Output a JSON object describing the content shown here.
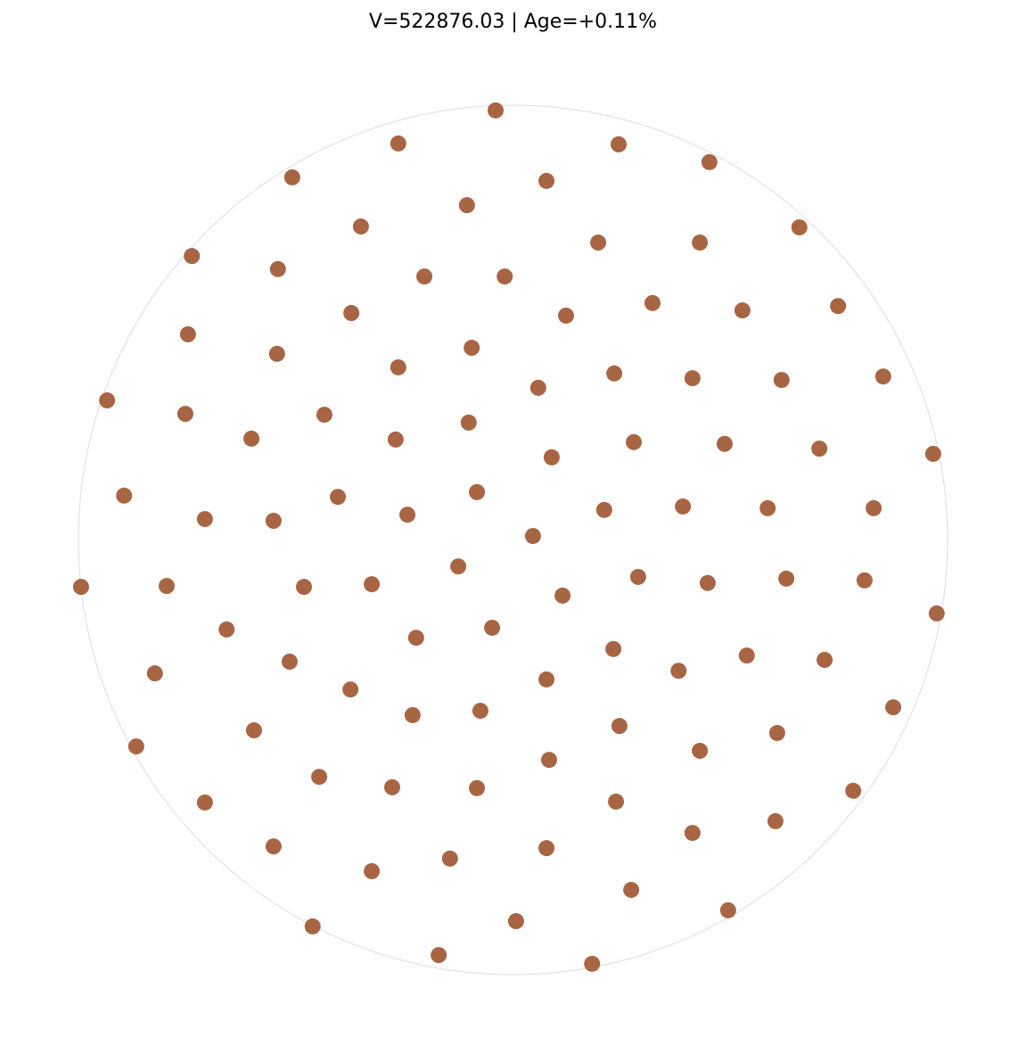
{
  "chart_data": {
    "type": "scatter",
    "title": "V=522876.03 | Age=+0.11%",
    "xlabel": "",
    "ylabel": "",
    "xlim": [
      -1,
      1
    ],
    "ylim": [
      -1,
      1
    ],
    "grid": false,
    "boundary": "circle",
    "colors": {
      "point": "#a86544",
      "boundary": "#dddddd"
    },
    "points": [
      [
        -0.04,
        0.988
      ],
      [
        -0.264,
        0.912
      ],
      [
        0.243,
        0.91
      ],
      [
        0.452,
        0.869
      ],
      [
        -0.508,
        0.834
      ],
      [
        0.077,
        0.826
      ],
      [
        -0.106,
        0.77
      ],
      [
        -0.35,
        0.721
      ],
      [
        0.659,
        0.719
      ],
      [
        0.196,
        0.684
      ],
      [
        0.43,
        0.684
      ],
      [
        -0.739,
        0.653
      ],
      [
        -0.541,
        0.623
      ],
      [
        -0.204,
        0.606
      ],
      [
        -0.019,
        0.606
      ],
      [
        0.321,
        0.545
      ],
      [
        0.748,
        0.538
      ],
      [
        0.528,
        0.528
      ],
      [
        -0.372,
        0.522
      ],
      [
        0.122,
        0.516
      ],
      [
        -0.748,
        0.473
      ],
      [
        -0.095,
        0.442
      ],
      [
        -0.543,
        0.428
      ],
      [
        -0.264,
        0.397
      ],
      [
        0.233,
        0.383
      ],
      [
        0.852,
        0.376
      ],
      [
        0.413,
        0.372
      ],
      [
        0.618,
        0.368
      ],
      [
        0.058,
        0.35
      ],
      [
        -0.934,
        0.321
      ],
      [
        -0.754,
        0.29
      ],
      [
        -0.434,
        0.288
      ],
      [
        -0.102,
        0.27
      ],
      [
        -0.602,
        0.233
      ],
      [
        -0.27,
        0.231
      ],
      [
        0.278,
        0.225
      ],
      [
        0.487,
        0.221
      ],
      [
        0.705,
        0.21
      ],
      [
        0.967,
        0.198
      ],
      [
        0.089,
        0.19
      ],
      [
        -0.083,
        0.11
      ],
      [
        -0.895,
        0.102
      ],
      [
        -0.403,
        0.099
      ],
      [
        0.391,
        0.077
      ],
      [
        0.586,
        0.073
      ],
      [
        0.83,
        0.073
      ],
      [
        0.21,
        0.069
      ],
      [
        -0.243,
        0.058
      ],
      [
        -0.709,
        0.048
      ],
      [
        -0.551,
        0.044
      ],
      [
        0.046,
        0.009
      ],
      [
        -0.126,
        -0.061
      ],
      [
        0.288,
        -0.085
      ],
      [
        0.629,
        -0.089
      ],
      [
        0.809,
        -0.093
      ],
      [
        0.448,
        -0.099
      ],
      [
        -0.325,
        -0.102
      ],
      [
        -0.994,
        -0.108
      ],
      [
        -0.797,
        -0.106
      ],
      [
        -0.481,
        -0.108
      ],
      [
        0.114,
        -0.128
      ],
      [
        0.975,
        -0.169
      ],
      [
        -0.048,
        -0.202
      ],
      [
        -0.659,
        -0.206
      ],
      [
        -0.223,
        -0.225
      ],
      [
        0.231,
        -0.251
      ],
      [
        0.538,
        -0.266
      ],
      [
        0.717,
        -0.276
      ],
      [
        -0.514,
        -0.28
      ],
      [
        0.381,
        -0.301
      ],
      [
        -0.824,
        -0.307
      ],
      [
        0.077,
        -0.321
      ],
      [
        -0.374,
        -0.344
      ],
      [
        0.875,
        -0.385
      ],
      [
        -0.075,
        -0.393
      ],
      [
        -0.231,
        -0.403
      ],
      [
        0.245,
        -0.428
      ],
      [
        -0.596,
        -0.438
      ],
      [
        0.608,
        -0.444
      ],
      [
        -0.867,
        -0.475
      ],
      [
        0.43,
        -0.485
      ],
      [
        0.083,
        -0.506
      ],
      [
        -0.446,
        -0.545
      ],
      [
        -0.278,
        -0.569
      ],
      [
        -0.083,
        -0.571
      ],
      [
        0.783,
        -0.577
      ],
      [
        0.237,
        -0.602
      ],
      [
        -0.709,
        -0.604
      ],
      [
        0.604,
        -0.647
      ],
      [
        0.413,
        -0.674
      ],
      [
        -0.551,
        -0.705
      ],
      [
        0.077,
        -0.709
      ],
      [
        -0.145,
        -0.733
      ],
      [
        -0.325,
        -0.762
      ],
      [
        0.272,
        -0.805
      ],
      [
        0.495,
        -0.852
      ],
      [
        0.007,
        -0.877
      ],
      [
        -0.461,
        -0.889
      ],
      [
        -0.171,
        -0.955
      ],
      [
        0.182,
        -0.975
      ]
    ]
  }
}
